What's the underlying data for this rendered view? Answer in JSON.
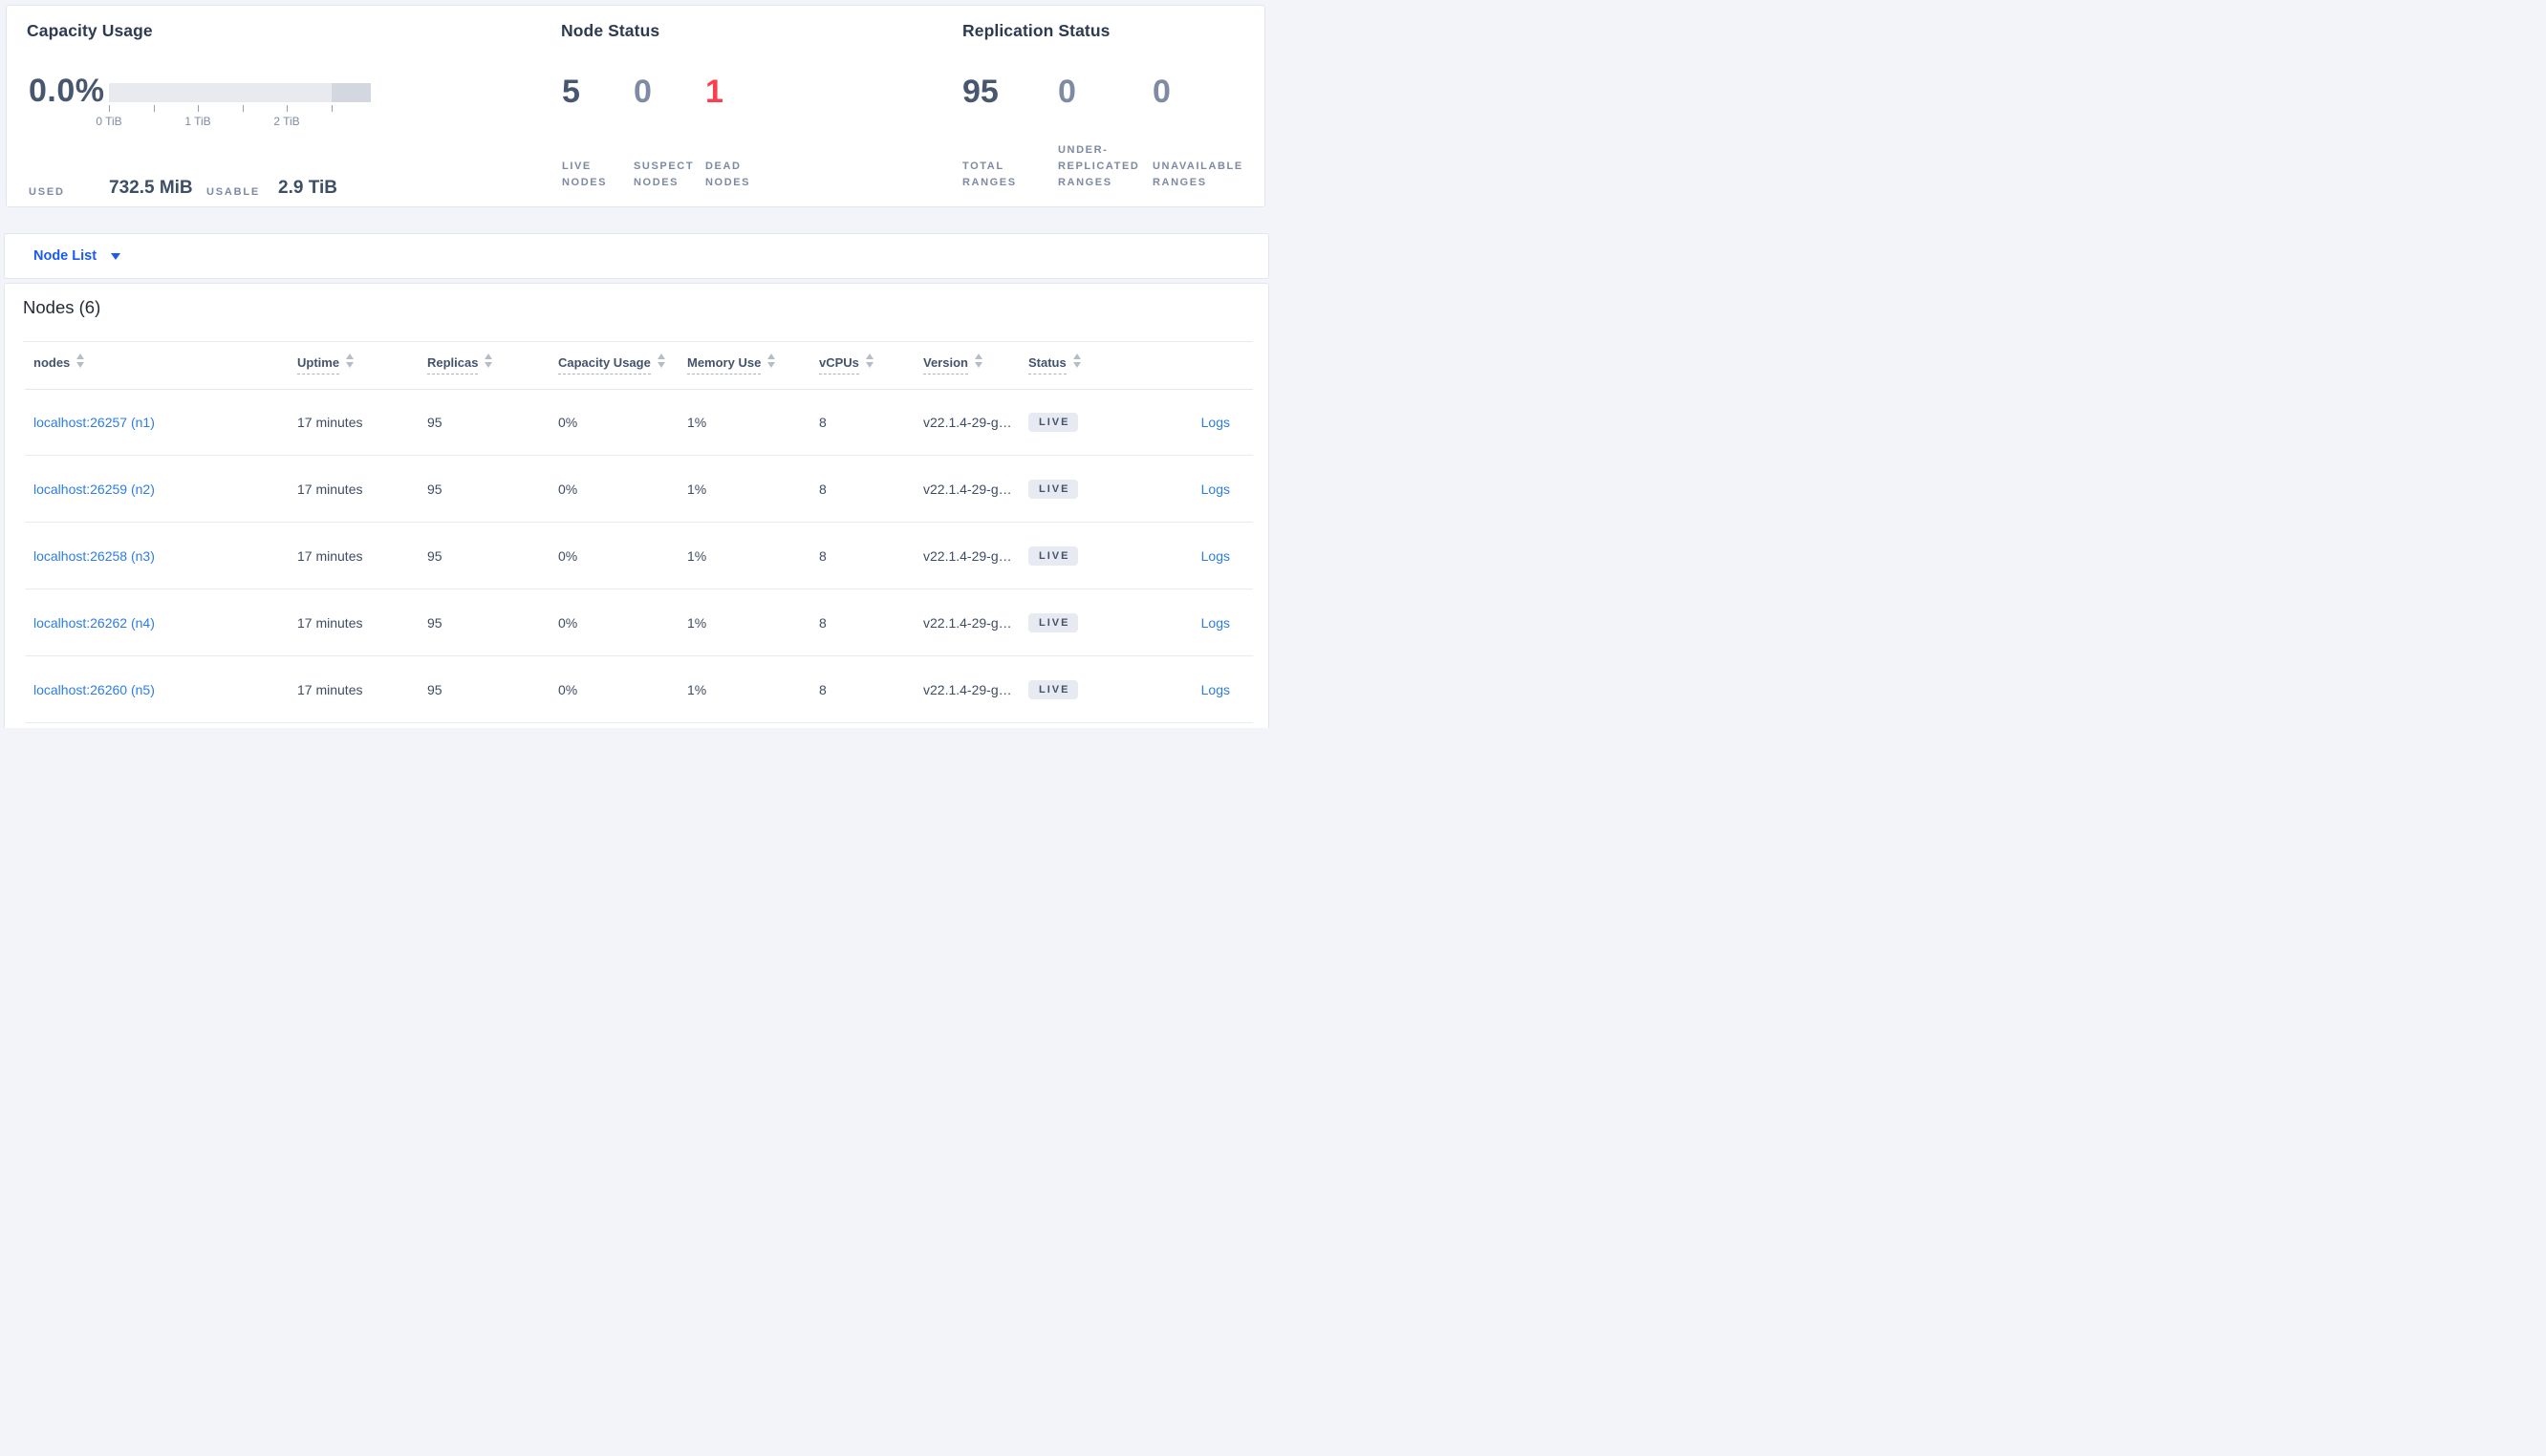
{
  "summary": {
    "capacity": {
      "title": "Capacity Usage",
      "percent": "0.0%",
      "used_label": "USED",
      "used_value": "732.5 MiB",
      "usable_label": "USABLE",
      "usable_value": "2.9 TiB",
      "axis_tick_labels": [
        "0 TiB",
        "1 TiB",
        "2 TiB"
      ],
      "bar": {
        "segment_light_color": "#e8eaef",
        "segment_dark_color": "#d3d7df"
      }
    },
    "node_status": {
      "title": "Node Status",
      "stats": [
        {
          "value": "5",
          "label": "LIVE NODES",
          "tone": "dark"
        },
        {
          "value": "0",
          "label": "SUSPECT NODES",
          "tone": "muted"
        },
        {
          "value": "1",
          "label": "DEAD NODES",
          "tone": "danger"
        }
      ]
    },
    "replication": {
      "title": "Replication Status",
      "stats": [
        {
          "value": "95",
          "label": "TOTAL RANGES",
          "tone": "dark"
        },
        {
          "value": "0",
          "label": "UNDER-REPLICATED RANGES",
          "tone": "muted"
        },
        {
          "value": "0",
          "label": "UNAVAILABLE RANGES",
          "tone": "muted"
        }
      ]
    }
  },
  "view_selector": {
    "label": "Node List"
  },
  "nodes_section": {
    "title": "Nodes (6)"
  },
  "table": {
    "columns": [
      {
        "key": "node",
        "label": "nodes",
        "filterable": false
      },
      {
        "key": "uptime",
        "label": "Uptime",
        "filterable": true
      },
      {
        "key": "replicas",
        "label": "Replicas",
        "filterable": true
      },
      {
        "key": "capacity",
        "label": "Capacity Usage",
        "filterable": true
      },
      {
        "key": "memory",
        "label": "Memory Use",
        "filterable": true
      },
      {
        "key": "vcpus",
        "label": "vCPUs",
        "filterable": true
      },
      {
        "key": "version",
        "label": "Version",
        "filterable": true
      },
      {
        "key": "status",
        "label": "Status",
        "filterable": true
      }
    ],
    "rows": [
      {
        "node": "localhost:26257 (n1)",
        "uptime": "17 minutes",
        "replicas": "95",
        "capacity": "0%",
        "memory": "1%",
        "vcpus": "8",
        "version": "v22.1.4-29-g…",
        "status": "LIVE",
        "logs": "Logs"
      },
      {
        "node": "localhost:26259 (n2)",
        "uptime": "17 minutes",
        "replicas": "95",
        "capacity": "0%",
        "memory": "1%",
        "vcpus": "8",
        "version": "v22.1.4-29-g…",
        "status": "LIVE",
        "logs": "Logs"
      },
      {
        "node": "localhost:26258 (n3)",
        "uptime": "17 minutes",
        "replicas": "95",
        "capacity": "0%",
        "memory": "1%",
        "vcpus": "8",
        "version": "v22.1.4-29-g…",
        "status": "LIVE",
        "logs": "Logs"
      },
      {
        "node": "localhost:26262 (n4)",
        "uptime": "17 minutes",
        "replicas": "95",
        "capacity": "0%",
        "memory": "1%",
        "vcpus": "8",
        "version": "v22.1.4-29-g…",
        "status": "LIVE",
        "logs": "Logs"
      },
      {
        "node": "localhost:26260 (n5)",
        "uptime": "17 minutes",
        "replicas": "95",
        "capacity": "0%",
        "memory": "1%",
        "vcpus": "8",
        "version": "v22.1.4-29-g…",
        "status": "LIVE",
        "logs": "Logs"
      }
    ]
  },
  "colors": {
    "page_background": "#f2f4f9",
    "panel_background": "#ffffff",
    "panel_border": "#e2e6ee",
    "stat_dark": "#47576f",
    "stat_muted": "#7e8ba2",
    "stat_danger": "#fc3d4d",
    "label_gray": "#7d8aa1",
    "link_blue": "#2b7ce9",
    "selector_blue": "#1b5bef",
    "badge_background": "#e7eaf1",
    "badge_text": "#44536b"
  }
}
